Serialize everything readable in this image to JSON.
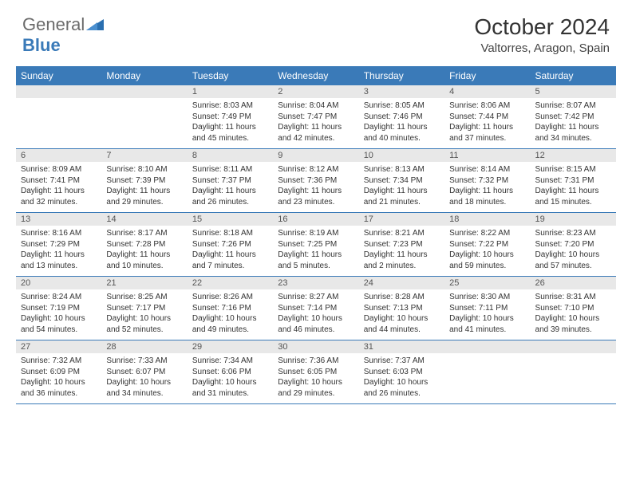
{
  "brand": {
    "part1": "General",
    "part2": "Blue"
  },
  "title": "October 2024",
  "location": "Valtorres, Aragon, Spain",
  "colors": {
    "header_bg": "#3a7ab8",
    "daynum_bg": "#e8e8e8",
    "border": "#3a7ab8",
    "text": "#333333",
    "background": "#ffffff"
  },
  "day_names": [
    "Sunday",
    "Monday",
    "Tuesday",
    "Wednesday",
    "Thursday",
    "Friday",
    "Saturday"
  ],
  "weeks": [
    [
      {
        "n": "",
        "sr": "",
        "ss": "",
        "dl": ""
      },
      {
        "n": "",
        "sr": "",
        "ss": "",
        "dl": ""
      },
      {
        "n": "1",
        "sr": "Sunrise: 8:03 AM",
        "ss": "Sunset: 7:49 PM",
        "dl": "Daylight: 11 hours and 45 minutes."
      },
      {
        "n": "2",
        "sr": "Sunrise: 8:04 AM",
        "ss": "Sunset: 7:47 PM",
        "dl": "Daylight: 11 hours and 42 minutes."
      },
      {
        "n": "3",
        "sr": "Sunrise: 8:05 AM",
        "ss": "Sunset: 7:46 PM",
        "dl": "Daylight: 11 hours and 40 minutes."
      },
      {
        "n": "4",
        "sr": "Sunrise: 8:06 AM",
        "ss": "Sunset: 7:44 PM",
        "dl": "Daylight: 11 hours and 37 minutes."
      },
      {
        "n": "5",
        "sr": "Sunrise: 8:07 AM",
        "ss": "Sunset: 7:42 PM",
        "dl": "Daylight: 11 hours and 34 minutes."
      }
    ],
    [
      {
        "n": "6",
        "sr": "Sunrise: 8:09 AM",
        "ss": "Sunset: 7:41 PM",
        "dl": "Daylight: 11 hours and 32 minutes."
      },
      {
        "n": "7",
        "sr": "Sunrise: 8:10 AM",
        "ss": "Sunset: 7:39 PM",
        "dl": "Daylight: 11 hours and 29 minutes."
      },
      {
        "n": "8",
        "sr": "Sunrise: 8:11 AM",
        "ss": "Sunset: 7:37 PM",
        "dl": "Daylight: 11 hours and 26 minutes."
      },
      {
        "n": "9",
        "sr": "Sunrise: 8:12 AM",
        "ss": "Sunset: 7:36 PM",
        "dl": "Daylight: 11 hours and 23 minutes."
      },
      {
        "n": "10",
        "sr": "Sunrise: 8:13 AM",
        "ss": "Sunset: 7:34 PM",
        "dl": "Daylight: 11 hours and 21 minutes."
      },
      {
        "n": "11",
        "sr": "Sunrise: 8:14 AM",
        "ss": "Sunset: 7:32 PM",
        "dl": "Daylight: 11 hours and 18 minutes."
      },
      {
        "n": "12",
        "sr": "Sunrise: 8:15 AM",
        "ss": "Sunset: 7:31 PM",
        "dl": "Daylight: 11 hours and 15 minutes."
      }
    ],
    [
      {
        "n": "13",
        "sr": "Sunrise: 8:16 AM",
        "ss": "Sunset: 7:29 PM",
        "dl": "Daylight: 11 hours and 13 minutes."
      },
      {
        "n": "14",
        "sr": "Sunrise: 8:17 AM",
        "ss": "Sunset: 7:28 PM",
        "dl": "Daylight: 11 hours and 10 minutes."
      },
      {
        "n": "15",
        "sr": "Sunrise: 8:18 AM",
        "ss": "Sunset: 7:26 PM",
        "dl": "Daylight: 11 hours and 7 minutes."
      },
      {
        "n": "16",
        "sr": "Sunrise: 8:19 AM",
        "ss": "Sunset: 7:25 PM",
        "dl": "Daylight: 11 hours and 5 minutes."
      },
      {
        "n": "17",
        "sr": "Sunrise: 8:21 AM",
        "ss": "Sunset: 7:23 PM",
        "dl": "Daylight: 11 hours and 2 minutes."
      },
      {
        "n": "18",
        "sr": "Sunrise: 8:22 AM",
        "ss": "Sunset: 7:22 PM",
        "dl": "Daylight: 10 hours and 59 minutes."
      },
      {
        "n": "19",
        "sr": "Sunrise: 8:23 AM",
        "ss": "Sunset: 7:20 PM",
        "dl": "Daylight: 10 hours and 57 minutes."
      }
    ],
    [
      {
        "n": "20",
        "sr": "Sunrise: 8:24 AM",
        "ss": "Sunset: 7:19 PM",
        "dl": "Daylight: 10 hours and 54 minutes."
      },
      {
        "n": "21",
        "sr": "Sunrise: 8:25 AM",
        "ss": "Sunset: 7:17 PM",
        "dl": "Daylight: 10 hours and 52 minutes."
      },
      {
        "n": "22",
        "sr": "Sunrise: 8:26 AM",
        "ss": "Sunset: 7:16 PM",
        "dl": "Daylight: 10 hours and 49 minutes."
      },
      {
        "n": "23",
        "sr": "Sunrise: 8:27 AM",
        "ss": "Sunset: 7:14 PM",
        "dl": "Daylight: 10 hours and 46 minutes."
      },
      {
        "n": "24",
        "sr": "Sunrise: 8:28 AM",
        "ss": "Sunset: 7:13 PM",
        "dl": "Daylight: 10 hours and 44 minutes."
      },
      {
        "n": "25",
        "sr": "Sunrise: 8:30 AM",
        "ss": "Sunset: 7:11 PM",
        "dl": "Daylight: 10 hours and 41 minutes."
      },
      {
        "n": "26",
        "sr": "Sunrise: 8:31 AM",
        "ss": "Sunset: 7:10 PM",
        "dl": "Daylight: 10 hours and 39 minutes."
      }
    ],
    [
      {
        "n": "27",
        "sr": "Sunrise: 7:32 AM",
        "ss": "Sunset: 6:09 PM",
        "dl": "Daylight: 10 hours and 36 minutes."
      },
      {
        "n": "28",
        "sr": "Sunrise: 7:33 AM",
        "ss": "Sunset: 6:07 PM",
        "dl": "Daylight: 10 hours and 34 minutes."
      },
      {
        "n": "29",
        "sr": "Sunrise: 7:34 AM",
        "ss": "Sunset: 6:06 PM",
        "dl": "Daylight: 10 hours and 31 minutes."
      },
      {
        "n": "30",
        "sr": "Sunrise: 7:36 AM",
        "ss": "Sunset: 6:05 PM",
        "dl": "Daylight: 10 hours and 29 minutes."
      },
      {
        "n": "31",
        "sr": "Sunrise: 7:37 AM",
        "ss": "Sunset: 6:03 PM",
        "dl": "Daylight: 10 hours and 26 minutes."
      },
      {
        "n": "",
        "sr": "",
        "ss": "",
        "dl": ""
      },
      {
        "n": "",
        "sr": "",
        "ss": "",
        "dl": ""
      }
    ]
  ]
}
